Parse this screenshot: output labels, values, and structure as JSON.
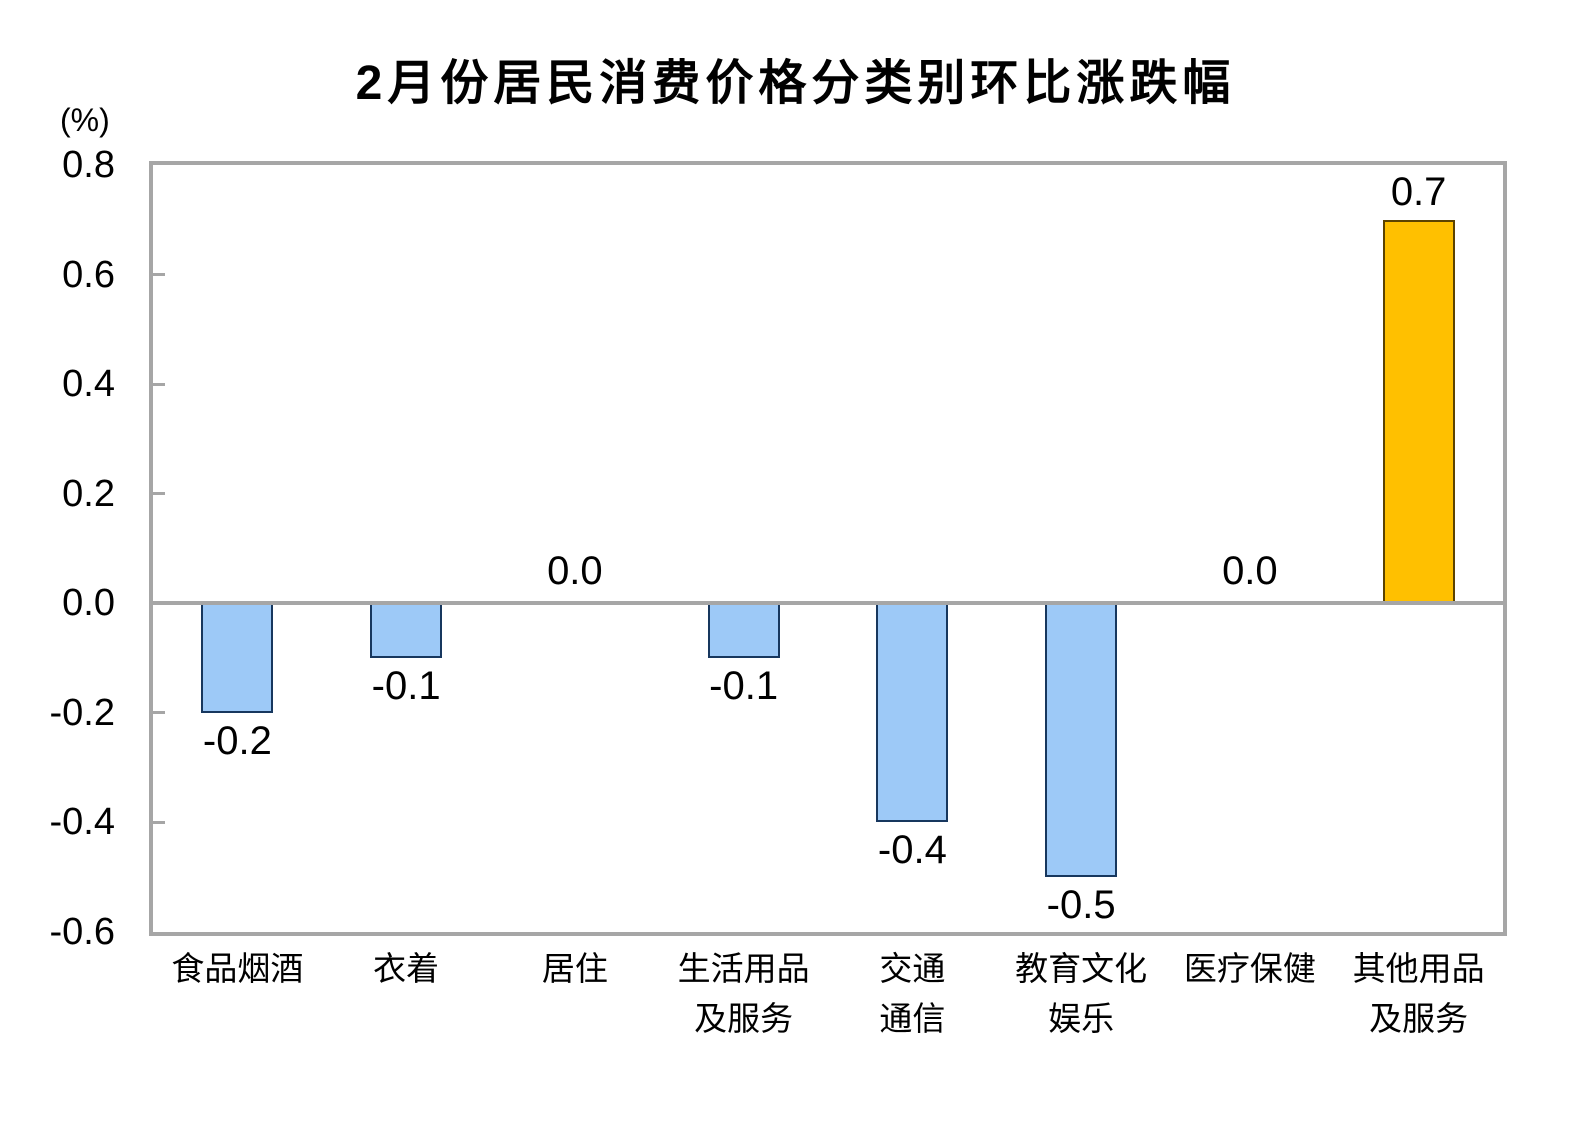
{
  "chart_data": {
    "type": "bar",
    "title": "2月份居民消费价格分类别环比涨跌幅",
    "unit_label": "(%)",
    "categories": [
      "食品烟酒",
      "衣着",
      "居住",
      "生活用品及服务",
      "交通通信",
      "教育文化娱乐",
      "医疗保健",
      "其他用品及服务"
    ],
    "category_lines": [
      [
        "食品烟酒"
      ],
      [
        "衣着"
      ],
      [
        "居住"
      ],
      [
        "生活用品",
        "及服务"
      ],
      [
        "交通",
        "通信"
      ],
      [
        "教育文化",
        "娱乐"
      ],
      [
        "医疗保健"
      ],
      [
        "其他用品",
        "及服务"
      ]
    ],
    "values": [
      -0.2,
      -0.1,
      0.0,
      -0.1,
      -0.4,
      -0.5,
      0.0,
      0.7
    ],
    "value_labels": [
      "-0.2",
      "-0.1",
      "0.0",
      "-0.1",
      "-0.4",
      "-0.5",
      "0.0",
      "0.7"
    ],
    "y_ticks": [
      0.8,
      0.6,
      0.4,
      0.2,
      0.0,
      -0.2,
      -0.4,
      -0.6
    ],
    "y_tick_labels": [
      "0.8",
      "0.6",
      "0.4",
      "0.2",
      "0.0",
      "-0.2",
      "-0.4",
      "-0.6"
    ],
    "ylim": [
      -0.6,
      0.8
    ],
    "xlabel": "",
    "ylabel": "(%)",
    "grid": false,
    "legend": null,
    "highlight_index": 7,
    "colors": {
      "bar_fill": "#9DC9F7",
      "bar_border": "#17375E",
      "highlight_fill": "#FFC000",
      "highlight_border": "#5C4300",
      "axis": "#A6A6A6",
      "text": "#000000",
      "background": "#FFFFFF"
    }
  }
}
